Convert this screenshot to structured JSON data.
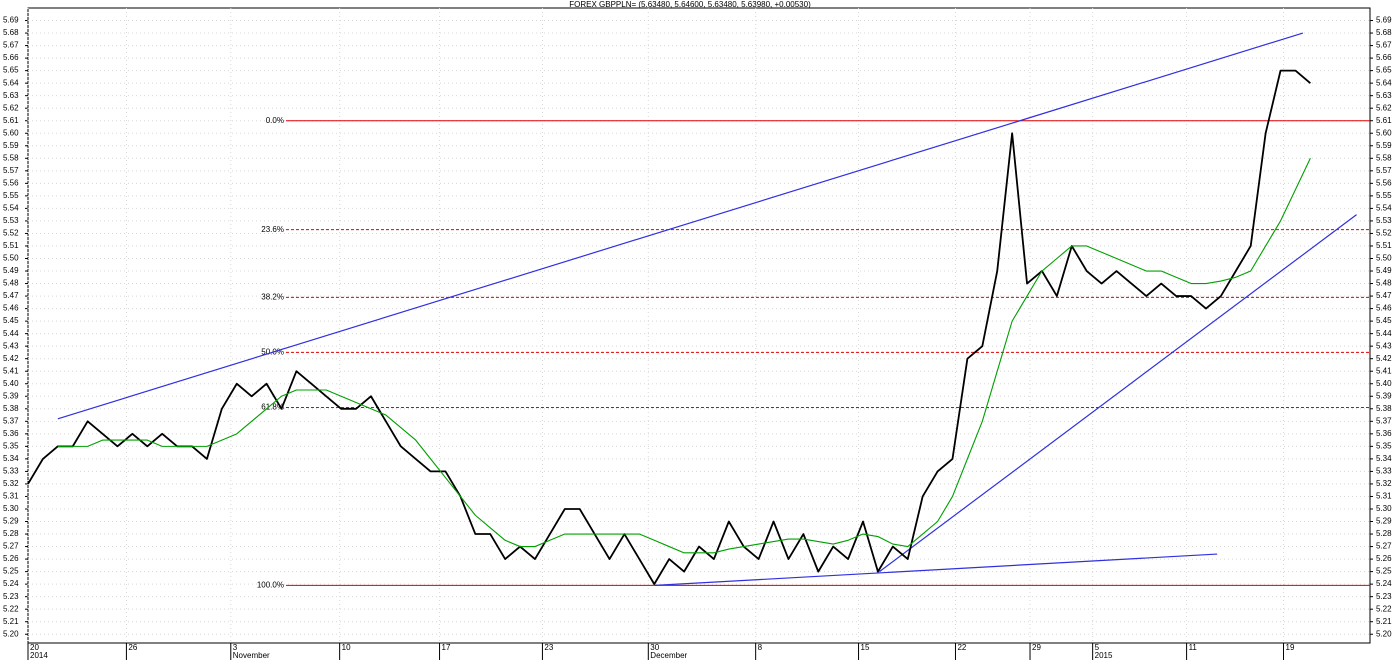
{
  "chart_data": {
    "type": "line",
    "title": "FOREX GBPPLN= (5.63480, 5.64600, 5.63480, 5.63980, +0.00530)",
    "xlim": [
      0,
      90
    ],
    "ylim": [
      5.193,
      5.7
    ],
    "grid": true,
    "x": [
      0,
      1,
      2,
      3,
      4,
      5,
      6,
      7,
      8,
      9,
      10,
      11,
      12,
      13,
      14,
      15,
      16,
      17,
      18,
      19,
      20,
      21,
      22,
      23,
      24,
      25,
      26,
      27,
      28,
      29,
      30,
      31,
      32,
      33,
      34,
      35,
      36,
      37,
      38,
      39,
      40,
      41,
      42,
      43,
      44,
      45,
      46,
      47,
      48,
      49,
      50,
      51,
      52,
      53,
      54,
      55,
      56,
      57,
      58,
      59,
      60,
      61,
      62,
      63,
      64,
      65,
      66,
      67,
      68,
      69,
      70,
      71,
      72,
      73,
      74,
      75,
      76,
      77,
      78,
      79,
      80,
      81,
      82,
      83,
      84,
      85,
      86
    ],
    "xticks": [
      {
        "value": 0,
        "label": "20"
      },
      {
        "value": 6.6,
        "label": "26"
      },
      {
        "value": 13.6,
        "label": "3"
      },
      {
        "value": 20.9,
        "label": "10"
      },
      {
        "value": 27.6,
        "label": "17"
      },
      {
        "value": 34.5,
        "label": "23"
      },
      {
        "value": 41.6,
        "label": "30"
      },
      {
        "value": 48.8,
        "label": "8"
      },
      {
        "value": 55.7,
        "label": "15"
      },
      {
        "value": 62.2,
        "label": "22"
      },
      {
        "value": 67.2,
        "label": "29"
      },
      {
        "value": 71.4,
        "label": "5"
      },
      {
        "value": 77.7,
        "label": "11"
      },
      {
        "value": 84.2,
        "label": "19"
      }
    ],
    "period_labels": [
      {
        "value": 0,
        "label": "2014"
      },
      {
        "value": 13.6,
        "label": "November"
      },
      {
        "value": 41.6,
        "label": "December"
      },
      {
        "value": 71.4,
        "label": "2015"
      }
    ],
    "yticks": [
      {
        "value": 5.2,
        "label": "5.20"
      },
      5.21,
      5.22,
      5.23,
      5.24,
      5.25,
      5.26,
      5.27,
      5.28,
      5.29,
      {
        "value": 5.3,
        "label": "5.30"
      },
      5.31,
      5.32,
      5.33,
      5.34,
      5.35,
      5.36,
      5.37,
      5.38,
      5.39,
      {
        "value": 5.4,
        "label": "5.40"
      },
      5.41,
      5.42,
      5.43,
      5.44,
      5.45,
      5.46,
      5.47,
      5.48,
      5.49,
      {
        "value": 5.5,
        "label": "5.50"
      },
      5.51,
      5.52,
      5.53,
      5.54,
      5.55,
      5.56,
      5.57,
      5.58,
      5.59,
      {
        "value": 5.6,
        "label": "5.60"
      },
      5.61,
      5.62,
      5.63,
      5.64,
      5.65,
      5.66,
      5.67,
      5.68,
      5.69
    ],
    "series": [
      {
        "color": "#000000",
        "values": [
          5.32,
          5.34,
          5.35,
          5.35,
          5.37,
          5.36,
          5.35,
          5.36,
          5.35,
          5.36,
          5.35,
          5.35,
          5.34,
          5.38,
          5.4,
          5.39,
          5.4,
          5.38,
          5.41,
          5.4,
          5.39,
          5.38,
          5.38,
          5.39,
          5.37,
          5.35,
          5.34,
          5.33,
          5.33,
          5.31,
          5.28,
          5.28,
          5.26,
          5.27,
          5.26,
          5.28,
          5.3,
          5.3,
          5.28,
          5.26,
          5.28,
          5.26,
          5.24,
          5.26,
          5.25,
          5.27,
          5.26,
          5.29,
          5.27,
          5.26,
          5.29,
          5.26,
          5.28,
          5.25,
          5.27,
          5.26,
          5.29,
          5.25,
          5.27,
          5.26,
          5.31,
          5.33,
          5.34,
          5.42,
          5.43,
          5.49,
          5.6,
          5.48,
          5.49,
          5.47,
          5.51,
          5.49,
          5.48,
          5.49,
          5.48,
          5.47,
          5.48,
          5.47,
          5.47,
          5.46,
          5.47,
          5.49,
          5.51,
          5.6,
          5.65,
          5.65,
          5.64
        ]
      },
      {
        "color": "#00a000",
        "values": [
          null,
          null,
          5.35,
          5.35,
          5.35,
          5.355,
          5.355,
          5.355,
          5.355,
          5.35,
          5.35,
          5.35,
          5.35,
          5.355,
          5.36,
          5.37,
          5.38,
          5.39,
          5.395,
          5.395,
          5.395,
          5.39,
          5.385,
          5.38,
          5.375,
          5.365,
          5.355,
          5.34,
          5.325,
          5.31,
          5.295,
          5.285,
          5.275,
          5.27,
          5.27,
          5.275,
          5.28,
          5.28,
          5.28,
          5.28,
          5.28,
          5.28,
          5.275,
          5.27,
          5.265,
          5.265,
          5.265,
          5.268,
          5.27,
          5.272,
          5.274,
          5.276,
          5.276,
          5.274,
          5.272,
          5.275,
          5.28,
          5.278,
          5.272,
          5.27,
          5.28,
          5.29,
          5.31,
          5.34,
          5.37,
          5.41,
          5.45,
          5.47,
          5.49,
          5.5,
          5.51,
          5.51,
          5.505,
          5.5,
          5.495,
          5.49,
          5.49,
          5.485,
          5.48,
          5.48,
          5.482,
          5.485,
          5.49,
          5.51,
          5.53,
          5.555,
          5.58
        ]
      }
    ],
    "trendlines": [
      {
        "color": "#3030e0",
        "x": [
          2,
          85.5
        ],
        "y": [
          5.372,
          5.68
        ]
      },
      {
        "color": "#3030e0",
        "x": [
          42.05,
          79.75
        ],
        "y": [
          5.239,
          5.264
        ]
      },
      {
        "color": "#3030e0",
        "x": [
          57.1,
          89.1
        ],
        "y": [
          5.25,
          5.535
        ]
      }
    ],
    "levels_color": "#e00000",
    "levels_start": 17.3,
    "levels": [
      {
        "label": "0.0%",
        "value": 5.61,
        "dashed": false
      },
      {
        "label": "23.6%",
        "value": 5.523,
        "dashed": true
      },
      {
        "label": "38.2%",
        "value": 5.469,
        "dashed": true
      },
      {
        "label": "50.0%",
        "value": 5.425,
        "dashed": true
      },
      {
        "label": "61.8%",
        "value": 5.381,
        "dashed": true
      },
      {
        "label": "100.0%",
        "value": 5.239,
        "dashed": false
      }
    ]
  }
}
